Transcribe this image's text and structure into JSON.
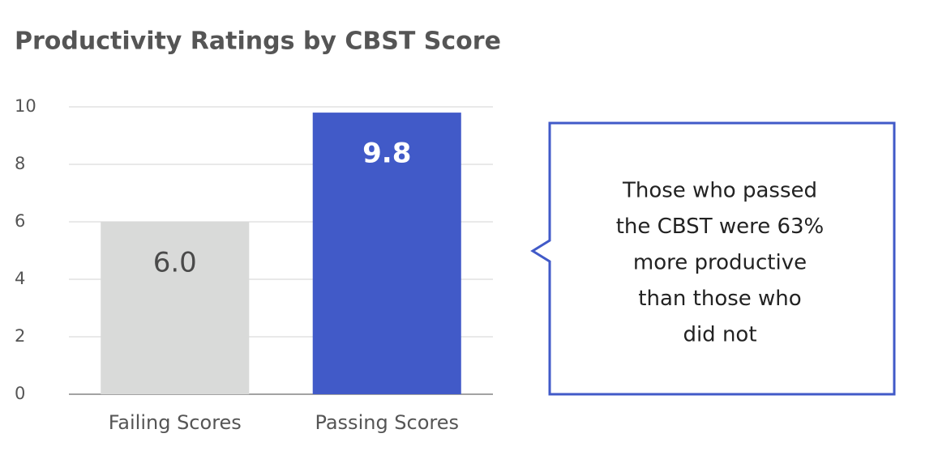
{
  "chart_data": {
    "type": "bar",
    "title": "Productivity Ratings by CBST Score",
    "categories": [
      "Failing Scores",
      "Passing Scores"
    ],
    "values": [
      6.0,
      9.8
    ],
    "value_labels": [
      "6.0",
      "9.8"
    ],
    "colors": [
      "#d9dad9",
      "#415ac8"
    ],
    "value_label_colors": [
      "#4a4a4a",
      "#ffffff"
    ],
    "ylim": [
      0,
      10
    ],
    "yticks": [
      0,
      2,
      4,
      6,
      8,
      10
    ],
    "grid": true,
    "annotation": [
      "Those who passed",
      "the CBST were 63%",
      "more productive",
      "than those who",
      "did not"
    ]
  }
}
